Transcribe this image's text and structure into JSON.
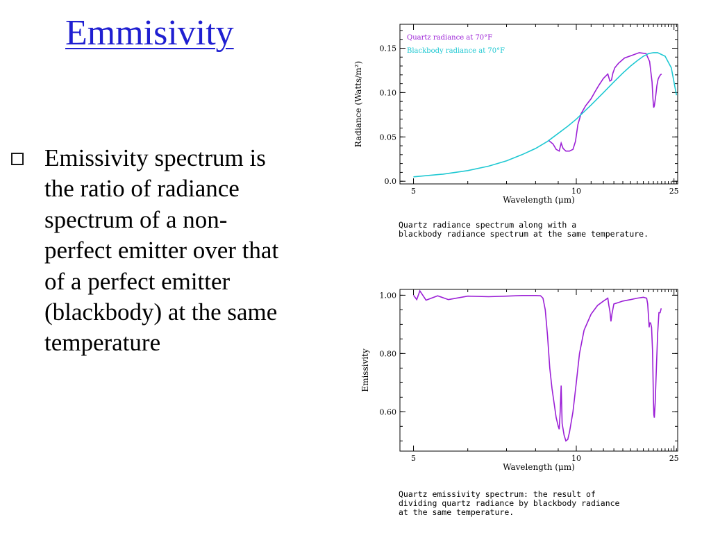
{
  "slide": {
    "title": "Emmisivity",
    "bullet": "Emissivity spectrum is the ratio of radiance spectrum of a non-perfect emitter over that of a perfect emitter (blackbody) at the same temperature"
  },
  "colors": {
    "title": "#1f1fd1",
    "quartz": "#9b1fd6",
    "blackbody": "#1ec8d2"
  },
  "chart_data": [
    {
      "type": "line",
      "title": "",
      "xlabel": "Wavelength (μm)",
      "ylabel": "Radiance (Watts/m²)",
      "xscale": "reciprocal",
      "xlim": [
        4.8,
        26.5
      ],
      "ylim": [
        -0.003,
        0.177
      ],
      "xticks": [
        "5",
        "10",
        "25"
      ],
      "yticks": [
        "0.0",
        "0.05",
        "0.10",
        "0.15"
      ],
      "legend_position": "top-left",
      "series": [
        {
          "name": "Quartz radiance at 70°F",
          "color": "#9b1fd6",
          "x": [
            8.55,
            8.75,
            8.9,
            9.05,
            9.15,
            9.25,
            9.4,
            9.6,
            9.8,
            9.95,
            10.1,
            10.3,
            10.6,
            11.0,
            11.3,
            11.6,
            12.0,
            12.4,
            12.6,
            12.75,
            12.9,
            13.1,
            13.5,
            14.2,
            15.2,
            16.3,
            17.5,
            18.2,
            18.7,
            18.9,
            19.05,
            19.2,
            19.5,
            19.8,
            20.1,
            20.4,
            20.7,
            21.0
          ],
          "y": [
            0.046,
            0.042,
            0.036,
            0.034,
            0.043,
            0.037,
            0.034,
            0.034,
            0.036,
            0.045,
            0.064,
            0.076,
            0.085,
            0.093,
            0.101,
            0.108,
            0.116,
            0.121,
            0.113,
            0.114,
            0.122,
            0.128,
            0.133,
            0.139,
            0.142,
            0.145,
            0.144,
            0.135,
            0.112,
            0.093,
            0.083,
            0.085,
            0.095,
            0.108,
            0.115,
            0.118,
            0.12,
            0.121
          ]
        },
        {
          "name": "Blackbody radiance at 70°F",
          "color": "#1ec8d2",
          "x": [
            5.0,
            5.5,
            6.0,
            6.5,
            7.0,
            7.5,
            8.0,
            8.5,
            9.0,
            9.5,
            10.0,
            11.0,
            12.0,
            13.0,
            14.0,
            15.0,
            16.0,
            17.0,
            18.0,
            19.0,
            20.0,
            22.0,
            24.0,
            26.0
          ],
          "y": [
            0.005,
            0.008,
            0.012,
            0.017,
            0.023,
            0.03,
            0.037,
            0.045,
            0.054,
            0.062,
            0.07,
            0.086,
            0.1,
            0.112,
            0.122,
            0.13,
            0.136,
            0.141,
            0.144,
            0.145,
            0.145,
            0.141,
            0.128,
            0.097
          ]
        }
      ],
      "caption": "Quartz radiance spectrum along with a\nblackbody radiance spectrum at the same temperature."
    },
    {
      "type": "line",
      "title": "",
      "xlabel": "Wavelength (μm)",
      "ylabel": "Emissivity",
      "xscale": "reciprocal",
      "xlim": [
        4.8,
        26.5
      ],
      "ylim": [
        0.465,
        1.02
      ],
      "xticks": [
        "5",
        "10",
        "25"
      ],
      "yticks": [
        "1.00",
        "0.80",
        "0.60"
      ],
      "series": [
        {
          "name": "",
          "color": "#9b1fd6",
          "x": [
            5.0,
            5.05,
            5.1,
            5.2,
            5.4,
            5.6,
            6.0,
            6.5,
            7.0,
            7.5,
            8.0,
            8.2,
            8.3,
            8.4,
            8.5,
            8.6,
            8.7,
            8.8,
            8.9,
            9.0,
            9.05,
            9.1,
            9.15,
            9.2,
            9.3,
            9.4,
            9.5,
            9.6,
            9.8,
            10.0,
            10.2,
            10.5,
            11.0,
            11.5,
            12.0,
            12.4,
            12.5,
            12.6,
            12.7,
            12.8,
            13.0,
            13.5,
            14.0,
            15.0,
            16.0,
            17.0,
            17.6,
            17.8,
            18.0,
            18.1,
            18.2,
            18.4,
            18.6,
            18.8,
            19.0,
            19.1,
            19.2,
            19.4,
            19.7,
            20.0,
            20.3,
            20.6,
            20.9
          ],
          "y": [
            1.0,
            0.985,
            1.015,
            0.983,
            0.998,
            0.985,
            0.997,
            0.995,
            0.997,
            0.999,
            0.999,
            0.998,
            0.99,
            0.95,
            0.86,
            0.75,
            0.68,
            0.63,
            0.58,
            0.55,
            0.54,
            0.6,
            0.69,
            0.56,
            0.52,
            0.5,
            0.505,
            0.53,
            0.6,
            0.7,
            0.8,
            0.88,
            0.935,
            0.965,
            0.98,
            0.99,
            0.965,
            0.945,
            0.91,
            0.935,
            0.97,
            0.975,
            0.98,
            0.985,
            0.99,
            0.993,
            0.99,
            0.97,
            0.92,
            0.89,
            0.905,
            0.905,
            0.89,
            0.81,
            0.64,
            0.59,
            0.58,
            0.63,
            0.76,
            0.87,
            0.94,
            0.94,
            0.955
          ]
        }
      ],
      "caption": "Quartz emissivity spectrum: the result of\ndividing quartz radiance by blackbody radiance\nat the same temperature."
    }
  ]
}
